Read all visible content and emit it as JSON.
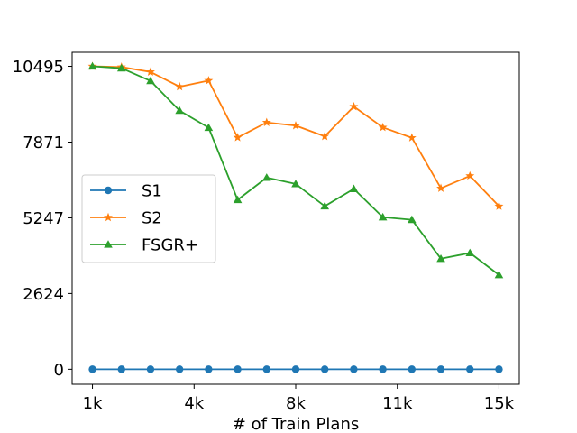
{
  "chart_data": {
    "type": "line",
    "title": "",
    "xlabel": "# of Train Plans",
    "ylabel": "",
    "x": [
      1,
      2,
      3,
      4,
      5,
      6,
      7,
      8,
      9,
      10,
      11,
      12,
      13,
      14,
      15
    ],
    "x_ticks": [
      {
        "x": 1,
        "label": "1k"
      },
      {
        "x": 4.5,
        "label": "4k"
      },
      {
        "x": 8,
        "label": "8k"
      },
      {
        "x": 11.5,
        "label": "11k"
      },
      {
        "x": 15,
        "label": "15k"
      }
    ],
    "y_ticks": [
      {
        "y": 0,
        "label": "0"
      },
      {
        "y": 2624,
        "label": "2624"
      },
      {
        "y": 5247,
        "label": "5247"
      },
      {
        "y": 7871,
        "label": "7871"
      },
      {
        "y": 10495,
        "label": "10495"
      }
    ],
    "xlim": [
      0.3,
      15.7
    ],
    "ylim": [
      -520,
      10980
    ],
    "grid": false,
    "legend_position": "center-left",
    "series": [
      {
        "name": "S1",
        "color": "#1f77b4",
        "marker": "circle",
        "values": [
          0,
          0,
          0,
          0,
          0,
          0,
          0,
          0,
          0,
          0,
          0,
          0,
          0,
          0,
          0
        ]
      },
      {
        "name": "S2",
        "color": "#ff7f0e",
        "marker": "star",
        "values": [
          10495,
          10470,
          10300,
          9790,
          10000,
          8030,
          8550,
          8440,
          8070,
          9100,
          8380,
          8020,
          6270,
          6700,
          5650
        ]
      },
      {
        "name": "FSGR+",
        "color": "#2ca02c",
        "marker": "triangle",
        "values": [
          10495,
          10430,
          9990,
          8960,
          8370,
          5870,
          6640,
          6420,
          5650,
          6250,
          5270,
          5180,
          3830,
          4030,
          3270
        ]
      }
    ]
  }
}
